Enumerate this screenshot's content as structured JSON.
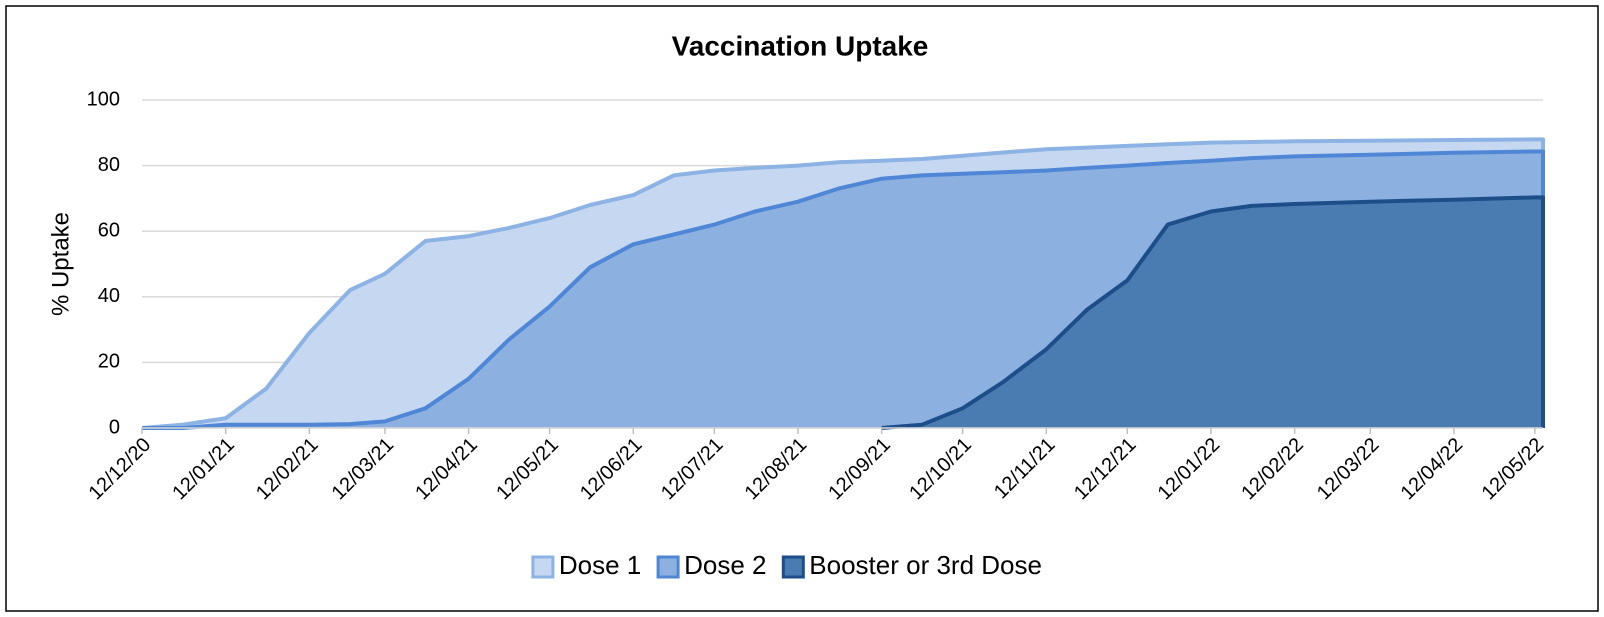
{
  "chart_data": {
    "type": "area",
    "title": "Vaccination Uptake",
    "y_label": "% Uptake",
    "x": [
      "12/12/20",
      "27/12/20",
      "12/01/21",
      "27/01/21",
      "12/02/21",
      "27/02/21",
      "12/03/21",
      "27/03/21",
      "12/04/21",
      "27/04/21",
      "12/05/21",
      "27/05/21",
      "12/06/21",
      "27/06/21",
      "12/07/21",
      "27/07/21",
      "12/08/21",
      "27/08/21",
      "12/09/21",
      "27/09/21",
      "12/10/21",
      "27/10/21",
      "12/11/21",
      "27/11/21",
      "12/12/21",
      "27/12/21",
      "12/01/22",
      "27/01/22",
      "12/02/22",
      "12/03/22",
      "12/04/22",
      "12/05/22",
      "15/05/22"
    ],
    "series": [
      {
        "name": "Dose 1",
        "color": "#8db3e4",
        "fill": "#c6d8f1",
        "values": [
          0,
          1,
          3,
          12,
          29,
          42,
          47,
          57,
          58.5,
          61,
          64,
          68,
          71,
          77,
          78.5,
          79.3,
          80,
          81,
          81.5,
          82,
          83,
          84,
          85,
          85.5,
          86,
          86.5,
          87,
          87.2,
          87.4,
          87.6,
          87.8,
          88,
          88
        ]
      },
      {
        "name": "Dose 2",
        "color": "#4f86d6",
        "fill": "#8cb1e1",
        "values": [
          0,
          0,
          1,
          1,
          1,
          1.2,
          2,
          6,
          15,
          27,
          37,
          49,
          56,
          59,
          62,
          66,
          69,
          73,
          76,
          77,
          77.5,
          78,
          78.5,
          79.3,
          80,
          80.8,
          81.5,
          82.3,
          82.8,
          83.3,
          83.9,
          84.3,
          84.3
        ]
      },
      {
        "name": "Booster or 3rd Dose",
        "color": "#1d4e8a",
        "fill": "#4b7cb1",
        "values": [
          null,
          null,
          null,
          null,
          null,
          null,
          null,
          null,
          null,
          null,
          null,
          null,
          null,
          null,
          null,
          null,
          null,
          null,
          0,
          1,
          6,
          14,
          24,
          36,
          45,
          62,
          66,
          67.7,
          68.3,
          69,
          69.6,
          70.3,
          70.3
        ]
      }
    ],
    "xlim": [
      "12/12/20",
      "15/05/22"
    ],
    "xticks": [
      "12/12/20",
      "12/01/21",
      "12/02/21",
      "12/03/21",
      "12/04/21",
      "12/05/21",
      "12/06/21",
      "12/07/21",
      "12/08/21",
      "12/09/21",
      "12/10/21",
      "12/11/21",
      "12/12/21",
      "12/01/22",
      "12/02/22",
      "12/03/22",
      "12/04/22",
      "12/05/22"
    ],
    "ylim": [
      0,
      100
    ],
    "yticks": [
      0,
      20,
      40,
      60,
      80,
      100
    ],
    "grid": true,
    "legend": "bottom"
  }
}
